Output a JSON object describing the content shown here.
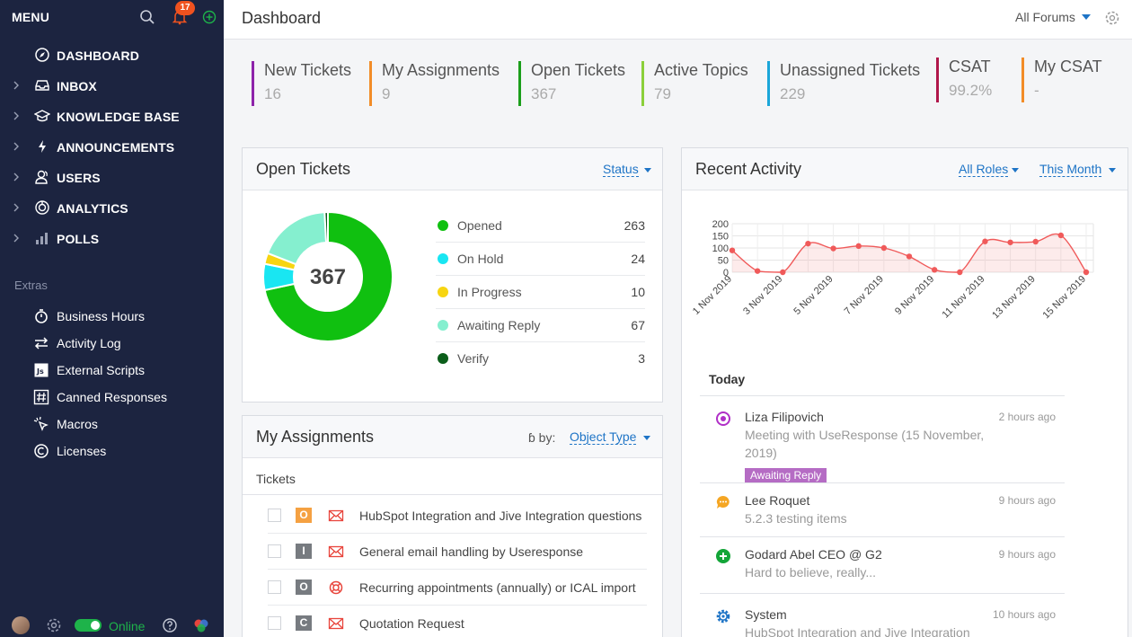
{
  "sidebar": {
    "menu_label": "MENU",
    "notification_count": "17",
    "nav": [
      {
        "label": "DASHBOARD",
        "icon": "compass-icon",
        "expandable": false
      },
      {
        "label": "INBOX",
        "icon": "inbox-icon",
        "expandable": true
      },
      {
        "label": "KNOWLEDGE BASE",
        "icon": "graduation-cap-icon",
        "expandable": true
      },
      {
        "label": "ANNOUNCEMENTS",
        "icon": "lightning-icon",
        "expandable": true
      },
      {
        "label": "USERS",
        "icon": "users-icon",
        "expandable": true
      },
      {
        "label": "ANALYTICS",
        "icon": "analytics-icon",
        "expandable": true
      },
      {
        "label": "POLLS",
        "icon": "bar-chart-icon",
        "expandable": true
      }
    ],
    "extras_title": "Extras",
    "extras": [
      {
        "label": "Business Hours",
        "icon": "stopwatch-icon"
      },
      {
        "label": "Activity Log",
        "icon": "arrows-icon"
      },
      {
        "label": "External Scripts",
        "icon": "js-icon"
      },
      {
        "label": "Canned Responses",
        "icon": "hash-icon"
      },
      {
        "label": "Macros",
        "icon": "cursor-click-icon"
      },
      {
        "label": "Licenses",
        "icon": "copyright-icon"
      }
    ],
    "status_label": "Online"
  },
  "header": {
    "title": "Dashboard",
    "forum_filter": "All Forums"
  },
  "stats": [
    {
      "label": "New Tickets",
      "value": "16",
      "color": "#8e24aa"
    },
    {
      "label": "My Assignments",
      "value": "9",
      "color": "#f28c28"
    },
    {
      "label": "Open Tickets",
      "value": "367",
      "color": "#1b9e1b"
    },
    {
      "label": "Active Topics",
      "value": "79",
      "color": "#8bcf3a"
    },
    {
      "label": "Unassigned Tickets",
      "value": "229",
      "color": "#1aa6d9"
    },
    {
      "label": "CSAT",
      "value": "99.2%",
      "color": "#b0174a"
    },
    {
      "label": "My CSAT",
      "value": "-",
      "color": "#f28c28"
    }
  ],
  "open_tickets": {
    "title": "Open Tickets",
    "filter": "Status",
    "total": "367",
    "statuses": [
      {
        "label": "Opened",
        "value": 263,
        "color": "#10c010"
      },
      {
        "label": "On Hold",
        "value": 24,
        "color": "#19e6f2"
      },
      {
        "label": "In Progress",
        "value": 10,
        "color": "#f7d511"
      },
      {
        "label": "Awaiting Reply",
        "value": 67,
        "color": "#85efcf"
      },
      {
        "label": "Verify",
        "value": 3,
        "color": "#0b5e1a"
      }
    ]
  },
  "my_assignments": {
    "title": "My Assignments",
    "sort_label": "ɓ by:",
    "sort_value": "Object Type",
    "subheading": "Tickets",
    "items": [
      {
        "tag": "O",
        "tag_color": "#f5a142",
        "icon": "envelope-icon",
        "title": "HubSpot Integration and Jive Integration questions"
      },
      {
        "tag": "I",
        "tag_color": "#777b80",
        "icon": "envelope-icon",
        "title": "General email handling by Useresponse"
      },
      {
        "tag": "O",
        "tag_color": "#777b80",
        "icon": "lifebuoy-icon",
        "title": "Recurring appointments (annually) or ICAL import"
      },
      {
        "tag": "C",
        "tag_color": "#777b80",
        "icon": "envelope-icon",
        "title": "Quotation Request"
      }
    ]
  },
  "recent_activity": {
    "title": "Recent Activity",
    "role_filter": "All Roles",
    "period_filter": "This Month",
    "section_label": "Today",
    "entries": [
      {
        "name": "Liza Filipovich",
        "time": "2 hours ago",
        "desc": "Meeting with UseResponse (15 November, 2019)",
        "badge": "Awaiting Reply",
        "icon": "target-icon",
        "icon_color": "#b02fc7"
      },
      {
        "name": "Lee Roquet",
        "time": "9 hours ago",
        "desc": "5.2.3 testing items",
        "badge": "",
        "icon": "chat-bubble-icon",
        "icon_color": "#f5a623"
      },
      {
        "name": "Godard Abel CEO @ G2",
        "time": "9 hours ago",
        "desc": "Hard to believe, really...",
        "badge": "",
        "icon": "plus-circle-icon",
        "icon_color": "#13a538"
      },
      {
        "name": "System",
        "time": "10 hours ago",
        "desc": "HubSpot Integration and Jive Integration",
        "badge": "",
        "icon": "gear-icon",
        "icon_color": "#1e74c6"
      }
    ]
  },
  "chart_data": {
    "type": "area",
    "x": [
      "1 Nov 2019",
      "2 Nov 2019",
      "3 Nov 2019",
      "4 Nov 2019",
      "5 Nov 2019",
      "6 Nov 2019",
      "7 Nov 2019",
      "8 Nov 2019",
      "9 Nov 2019",
      "10 Nov 2019",
      "11 Nov 2019",
      "12 Nov 2019",
      "13 Nov 2019",
      "14 Nov 2019",
      "15 Nov 2019"
    ],
    "tick_labels": [
      "1 Nov 2019",
      "3 Nov 2019",
      "5 Nov 2019",
      "7 Nov 2019",
      "9 Nov 2019",
      "11 Nov 2019",
      "13 Nov 2019",
      "15 Nov 2019"
    ],
    "series": [
      {
        "values": [
          90,
          5,
          0,
          118,
          98,
          108,
          100,
          65,
          10,
          0,
          127,
          123,
          126,
          152,
          0
        ],
        "color": "#f05a5a"
      }
    ],
    "yticks": [
      0,
      50,
      100,
      150,
      200
    ],
    "ylim": [
      0,
      200
    ],
    "grid": true
  }
}
